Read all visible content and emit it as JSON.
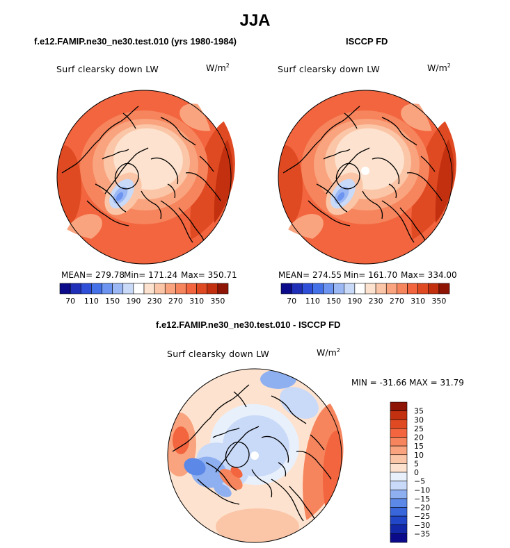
{
  "chart_data": [
    {
      "type": "heatmap",
      "title": "f.e12.FAMIP.ne30_ne30.test.010 (yrs 1980-1984)",
      "variable": "Surf clearsky down LW",
      "units_base": "W/m",
      "units_exp": "2",
      "stats": {
        "mean": "MEAN= 279.78",
        "min": "Min= 171.24",
        "max": "Max= 350.71"
      },
      "colorbar": {
        "levels": [
          70,
          90,
          110,
          130,
          150,
          170,
          190,
          210,
          230,
          250,
          270,
          290,
          310,
          330,
          350
        ],
        "tick_labels": [
          "70",
          "110",
          "150",
          "190",
          "230",
          "270",
          "310",
          "350"
        ],
        "colors": [
          "#0a0a8a",
          "#1f2fb8",
          "#2f4fd8",
          "#4470e8",
          "#6c94f0",
          "#9bb8f4",
          "#c9d9f8",
          "#ffffff",
          "#fde3cf",
          "#fbc6a7",
          "#f9a47e",
          "#f6845c",
          "#f2653e",
          "#e04a22",
          "#c2300f",
          "#8e1505"
        ]
      }
    },
    {
      "type": "heatmap",
      "title": "ISCCP FD",
      "variable": "Surf clearsky down LW",
      "units_base": "W/m",
      "units_exp": "2",
      "stats": {
        "mean": "MEAN= 274.55",
        "min": "Min= 161.70",
        "max": "Max= 334.00"
      },
      "colorbar": {
        "levels": [
          70,
          90,
          110,
          130,
          150,
          170,
          190,
          210,
          230,
          250,
          270,
          290,
          310,
          330,
          350
        ],
        "tick_labels": [
          "70",
          "110",
          "150",
          "190",
          "230",
          "270",
          "310",
          "350"
        ],
        "colors": [
          "#0a0a8a",
          "#1f2fb8",
          "#2f4fd8",
          "#4470e8",
          "#6c94f0",
          "#9bb8f4",
          "#c9d9f8",
          "#ffffff",
          "#fde3cf",
          "#fbc6a7",
          "#f9a47e",
          "#f6845c",
          "#f2653e",
          "#e04a22",
          "#c2300f",
          "#8e1505"
        ]
      }
    },
    {
      "type": "heatmap",
      "title": "f.e12.FAMIP.ne30_ne30.test.010 - ISCCP FD",
      "variable": "Surf clearsky down LW",
      "units_base": "W/m",
      "units_exp": "2",
      "stats": {
        "minmax": "MIN = -31.66 MAX =  31.79"
      },
      "colorbar": {
        "levels": [
          35,
          30,
          25,
          20,
          15,
          10,
          5,
          0,
          -5,
          -10,
          -15,
          -20,
          -25,
          -30,
          -35
        ],
        "tick_labels": [
          "35",
          "30",
          "25",
          "20",
          "15",
          "10",
          "5",
          "0",
          "−5",
          "−10",
          "−15",
          "−20",
          "−25",
          "−30",
          "−35"
        ],
        "colors": [
          "#8e1505",
          "#c2300f",
          "#e04a22",
          "#f2653e",
          "#f6845c",
          "#f9a47e",
          "#fbc6a7",
          "#fde3cf",
          "#e8f0fc",
          "#c9d9f8",
          "#8fb0f0",
          "#5c88e8",
          "#3a66dc",
          "#2246c8",
          "#1228a8",
          "#0a0a8a"
        ]
      }
    }
  ],
  "figure": {
    "title": "JJA"
  }
}
